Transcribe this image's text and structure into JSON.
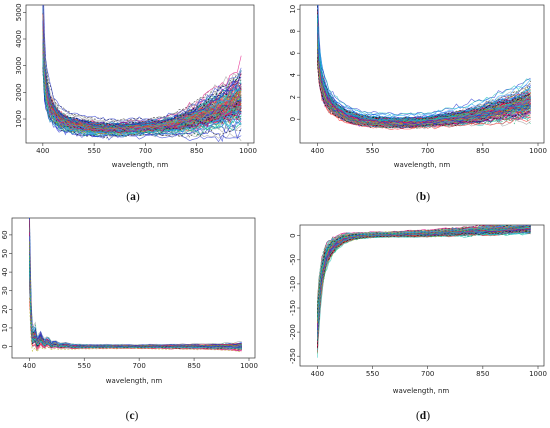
{
  "chart_data": [
    {
      "caption": "a",
      "type": "line",
      "xlabel": "wavelength, nm",
      "xticks": [
        400,
        550,
        700,
        850,
        1000
      ],
      "xlim": [
        380,
        1000
      ],
      "yticks": [
        1000,
        2000,
        3000,
        4000,
        5000
      ],
      "ylim": [
        250,
        5200
      ],
      "series_count": 160,
      "envelope": {
        "x": [
          400,
          405,
          410,
          420,
          430,
          450,
          480,
          520,
          550,
          600,
          650,
          700,
          750,
          800,
          850,
          900,
          950,
          980
        ],
        "mean": [
          4200,
          2600,
          2050,
          1500,
          1250,
          950,
          800,
          700,
          650,
          620,
          640,
          680,
          720,
          820,
          1000,
          1250,
          1500,
          1700
        ],
        "spread": [
          800,
          500,
          380,
          300,
          250,
          200,
          180,
          170,
          160,
          150,
          150,
          150,
          170,
          220,
          300,
          400,
          500,
          600
        ]
      }
    },
    {
      "caption": "b",
      "type": "line",
      "xlabel": "wavelength, nm",
      "xticks": [
        400,
        550,
        700,
        850,
        1000
      ],
      "xlim": [
        380,
        1000
      ],
      "yticks": [
        0,
        2,
        4,
        6,
        8,
        10
      ],
      "ylim": [
        -1.8,
        10.2
      ],
      "series_count": 160,
      "envelope": {
        "x": [
          400,
          405,
          410,
          420,
          430,
          450,
          480,
          520,
          550,
          600,
          650,
          700,
          750,
          800,
          850,
          900,
          950,
          980
        ],
        "mean": [
          7.5,
          4.8,
          3.5,
          2.3,
          1.6,
          0.9,
          0.3,
          -0.1,
          -0.2,
          -0.3,
          -0.3,
          -0.2,
          0.0,
          0.2,
          0.5,
          0.9,
          1.3,
          1.6
        ],
        "spread": [
          1.5,
          0.9,
          0.7,
          0.6,
          0.5,
          0.4,
          0.35,
          0.3,
          0.3,
          0.3,
          0.3,
          0.3,
          0.35,
          0.4,
          0.5,
          0.6,
          0.7,
          0.8
        ]
      }
    },
    {
      "caption": "c",
      "type": "line",
      "xlabel": "wavelength, nm",
      "xticks": [
        400,
        550,
        700,
        850,
        1000
      ],
      "xlim": [
        380,
        1000
      ],
      "yticks": [
        0,
        10,
        20,
        30,
        40,
        50,
        60
      ],
      "ylim": [
        -4,
        68
      ],
      "series_count": 160,
      "envelope": {
        "x": [
          400,
          403,
          406,
          410,
          414,
          418,
          422,
          430,
          440,
          450,
          460,
          470,
          480,
          500,
          520,
          550,
          600,
          700,
          800,
          900,
          960,
          980
        ],
        "mean": [
          55,
          25,
          9,
          2,
          8,
          4,
          1,
          5,
          1,
          3,
          0.5,
          1.5,
          0.3,
          0.5,
          0,
          0,
          0,
          0,
          0,
          0,
          0,
          0
        ],
        "spread": [
          10,
          6,
          3,
          2,
          2.5,
          2,
          1.5,
          1.5,
          1,
          1,
          0.8,
          0.8,
          0.6,
          0.6,
          0.5,
          0.4,
          0.4,
          0.4,
          0.5,
          0.6,
          0.8,
          1.0
        ]
      }
    },
    {
      "caption": "d",
      "type": "line",
      "xlabel": "wavelength, nm",
      "xticks": [
        400,
        550,
        700,
        850,
        1000
      ],
      "xlim": [
        380,
        1000
      ],
      "yticks": [
        0,
        -50,
        -100,
        -150,
        -200,
        -250
      ],
      "ylim": [
        -262,
        18
      ],
      "series_count": 160,
      "envelope": {
        "x": [
          400,
          405,
          410,
          420,
          430,
          450,
          470,
          500,
          530,
          550,
          600,
          700,
          800,
          900,
          980
        ],
        "mean": [
          -200,
          -140,
          -95,
          -55,
          -35,
          -18,
          -8,
          -2,
          0,
          1,
          2,
          4,
          8,
          12,
          17
        ],
        "spread": [
          30,
          25,
          20,
          15,
          12,
          8,
          6,
          4,
          3,
          3,
          3,
          4,
          5,
          6,
          7
        ]
      }
    }
  ],
  "captions": [
    "(a)",
    "(b)",
    "(c)",
    "(d)"
  ],
  "style": {
    "palette": [
      "#000000",
      "#e0007a",
      "#19a0ff",
      "#00a86b",
      "#1f2fd0",
      "#19c3b8",
      "#b0b000",
      "#9a9a9a",
      "#ff3030"
    ],
    "axis_color": "#333333"
  }
}
